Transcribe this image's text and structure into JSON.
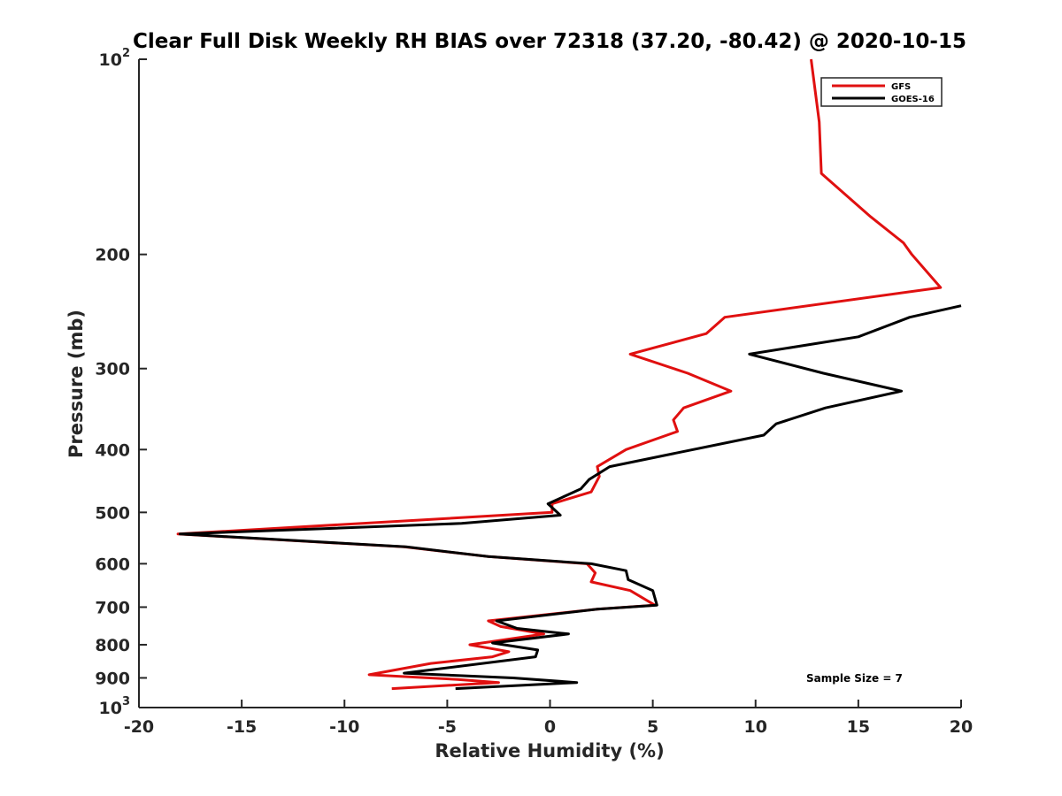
{
  "chart_data": {
    "type": "line",
    "title": "Clear Full Disk Weekly RH BIAS over 72318 (37.20, -80.42) @ 2020-10-15",
    "xlabel": "Relative Humidity (%)",
    "ylabel": "Pressure (mb)",
    "xlim": [
      -20,
      20
    ],
    "ylim": [
      100,
      1000
    ],
    "y_scale": "log",
    "y_reversed": true,
    "grid": false,
    "legend_position": "top-right",
    "x_ticks": [
      -20,
      -15,
      -10,
      -5,
      0,
      5,
      10,
      15,
      20
    ],
    "x_tick_labels": [
      "-20",
      "-15",
      "-10",
      "-5",
      "0",
      "5",
      "10",
      "15",
      "20"
    ],
    "y_ticks": [
      {
        "value": 100,
        "base": "10",
        "exp": "2"
      },
      {
        "value": 200,
        "base": "200",
        "exp": ""
      },
      {
        "value": 300,
        "base": "300",
        "exp": ""
      },
      {
        "value": 400,
        "base": "400",
        "exp": ""
      },
      {
        "value": 500,
        "base": "500",
        "exp": ""
      },
      {
        "value": 600,
        "base": "600",
        "exp": ""
      },
      {
        "value": 700,
        "base": "700",
        "exp": ""
      },
      {
        "value": 800,
        "base": "800",
        "exp": ""
      },
      {
        "value": 900,
        "base": "900",
        "exp": ""
      },
      {
        "value": 1000,
        "base": "10",
        "exp": "3"
      }
    ],
    "annotation": "Sample Size = 7",
    "series": [
      {
        "name": "GFS",
        "color": "#e01010",
        "points": [
          [
            12.7,
            100
          ],
          [
            13.1,
            125
          ],
          [
            13.2,
            150
          ],
          [
            15.6,
            175
          ],
          [
            17.2,
            192
          ],
          [
            17.6,
            200
          ],
          [
            19.0,
            225
          ],
          [
            8.5,
            250
          ],
          [
            7.6,
            265
          ],
          [
            3.9,
            285
          ],
          [
            6.7,
            305
          ],
          [
            8.8,
            325
          ],
          [
            6.5,
            345
          ],
          [
            6.0,
            360
          ],
          [
            6.2,
            375
          ],
          [
            3.7,
            400
          ],
          [
            2.3,
            425
          ],
          [
            2.4,
            440
          ],
          [
            2.0,
            465
          ],
          [
            0.1,
            485
          ],
          [
            0.1,
            500
          ],
          [
            -18.1,
            540
          ],
          [
            -7.1,
            565
          ],
          [
            -3.0,
            585
          ],
          [
            1.8,
            600
          ],
          [
            2.2,
            620
          ],
          [
            2.0,
            640
          ],
          [
            3.9,
            660
          ],
          [
            5.1,
            695
          ],
          [
            2.3,
            705
          ],
          [
            -3.0,
            735
          ],
          [
            -2.4,
            750
          ],
          [
            -0.3,
            770
          ],
          [
            -3.9,
            800
          ],
          [
            -2.0,
            820
          ],
          [
            -2.8,
            835
          ],
          [
            -5.8,
            855
          ],
          [
            -8.8,
            890
          ],
          [
            -4.5,
            905
          ],
          [
            -2.5,
            915
          ],
          [
            -7.7,
            935
          ]
        ]
      },
      {
        "name": "GOES-16",
        "color": "#000000",
        "points": [
          [
            20.0,
            240
          ],
          [
            17.5,
            250
          ],
          [
            15.0,
            268
          ],
          [
            9.7,
            285
          ],
          [
            13.3,
            305
          ],
          [
            17.1,
            325
          ],
          [
            13.4,
            345
          ],
          [
            11.0,
            365
          ],
          [
            10.4,
            380
          ],
          [
            2.9,
            425
          ],
          [
            1.9,
            445
          ],
          [
            1.5,
            460
          ],
          [
            -0.1,
            485
          ],
          [
            0.5,
            505
          ],
          [
            -4.3,
            520
          ],
          [
            -18.0,
            540
          ],
          [
            -7.0,
            565
          ],
          [
            -3.0,
            585
          ],
          [
            2.0,
            600
          ],
          [
            3.7,
            615
          ],
          [
            3.8,
            635
          ],
          [
            5.0,
            660
          ],
          [
            5.2,
            695
          ],
          [
            2.3,
            705
          ],
          [
            -2.6,
            735
          ],
          [
            -1.6,
            755
          ],
          [
            0.9,
            770
          ],
          [
            -2.8,
            795
          ],
          [
            -0.6,
            815
          ],
          [
            -0.7,
            835
          ],
          [
            -7.1,
            885
          ],
          [
            -1.8,
            900
          ],
          [
            1.3,
            915
          ],
          [
            -4.6,
            935
          ]
        ]
      }
    ]
  }
}
